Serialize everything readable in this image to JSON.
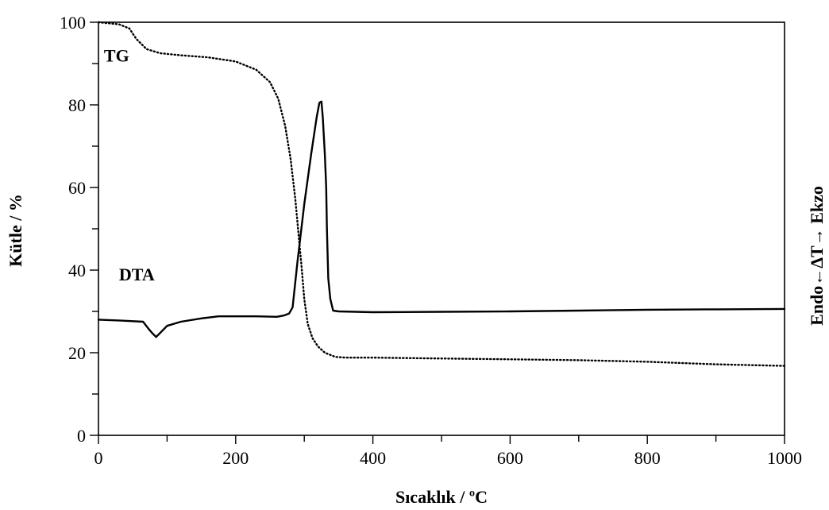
{
  "chart_data": {
    "type": "line",
    "title": "",
    "xlabel": "Sıcaklık / ºC",
    "ylabel": "Kütle / %",
    "y2label": "Endo←ΔT→ Ekzo",
    "xlim": [
      0,
      1000
    ],
    "ylim": [
      0,
      100
    ],
    "x_ticks": [
      0,
      200,
      400,
      600,
      800,
      1000
    ],
    "x_tick_labels": [
      "0",
      "200",
      "400",
      "600",
      "800",
      "1000"
    ],
    "y_ticks": [
      0,
      20,
      40,
      60,
      80,
      100
    ],
    "y_tick_labels": [
      "0",
      "20",
      "40",
      "60",
      "80",
      "100"
    ],
    "grid": false,
    "legend": "none",
    "series": [
      {
        "name": "TG",
        "style": "dotted",
        "color": "#000000",
        "x": [
          0,
          30,
          45,
          55,
          70,
          90,
          120,
          160,
          200,
          230,
          250,
          262,
          272,
          280,
          287,
          292,
          296,
          300,
          305,
          312,
          320,
          330,
          345,
          360,
          400,
          500,
          600,
          700,
          800,
          900,
          1000
        ],
        "y": [
          100,
          99.5,
          98.5,
          96,
          93.5,
          92.5,
          92,
          91.5,
          90.5,
          88.5,
          85.5,
          81.5,
          75,
          67,
          57,
          48,
          41,
          33,
          27,
          23.5,
          21.5,
          20,
          19,
          18.8,
          18.8,
          18.6,
          18.4,
          18.2,
          17.8,
          17.2,
          16.8
        ]
      },
      {
        "name": "DTA",
        "style": "solid",
        "color": "#000000",
        "x": [
          0,
          30,
          65,
          72,
          78,
          84,
          90,
          100,
          120,
          150,
          175,
          200,
          230,
          260,
          270,
          278,
          283,
          290,
          300,
          310,
          318,
          322,
          325,
          327,
          330,
          332,
          333,
          335,
          338,
          342,
          350,
          400,
          500,
          600,
          700,
          800,
          900,
          1000
        ],
        "y": [
          28,
          27.8,
          27.5,
          26,
          24.8,
          23.8,
          24.8,
          26.5,
          27.5,
          28.3,
          28.8,
          28.8,
          28.8,
          28.7,
          29,
          29.5,
          31,
          42,
          56,
          68,
          77,
          80.5,
          80.8,
          77,
          68,
          60,
          50,
          38,
          33,
          30.2,
          30,
          29.8,
          29.9,
          30,
          30.2,
          30.4,
          30.5,
          30.6
        ]
      }
    ],
    "annotations": [
      {
        "text": "TG",
        "x": 8,
        "y": 90.5
      },
      {
        "text": "DTA",
        "x": 30,
        "y": 37.5
      }
    ]
  }
}
